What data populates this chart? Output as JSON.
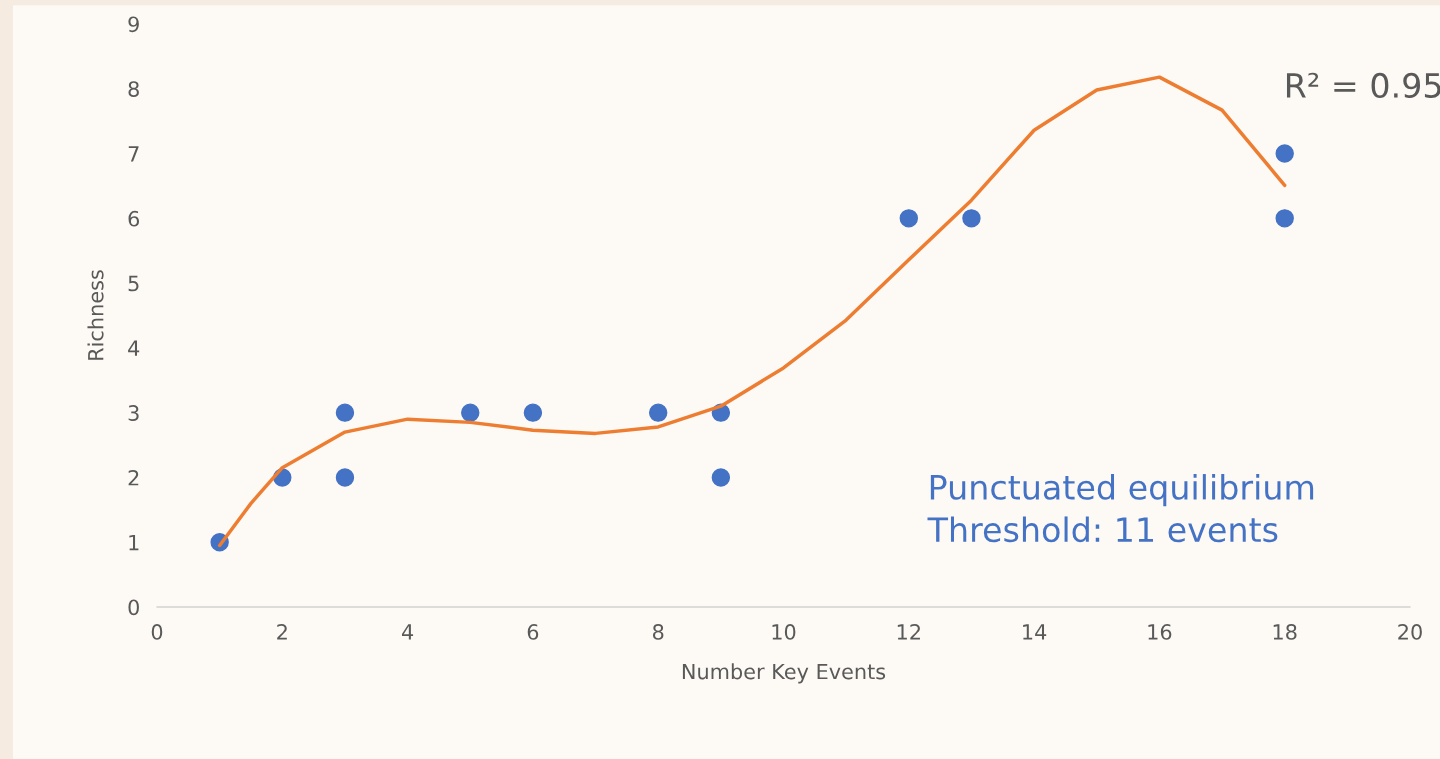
{
  "chart_data": {
    "type": "scatter",
    "xlabel": "Number Key Events",
    "ylabel": "Richness",
    "xlim": [
      0,
      20
    ],
    "xticks": [
      0,
      2,
      4,
      6,
      8,
      10,
      12,
      14,
      16,
      18,
      20
    ],
    "ylim": [
      0,
      9
    ],
    "yticks": [
      0,
      1,
      2,
      3,
      4,
      5,
      6,
      7,
      8,
      9
    ],
    "grid": false,
    "legend": false,
    "marker": "circle",
    "series": [
      {
        "color": "#4472c4",
        "x": [
          1,
          2,
          3,
          3,
          5,
          6,
          8,
          9,
          9,
          12,
          13,
          18,
          18
        ],
        "values": [
          1,
          2,
          3,
          2,
          3,
          3,
          3,
          3,
          2,
          6,
          6,
          7,
          6
        ]
      },
      {
        "type": "line",
        "color": "#ed7d31",
        "marker": "none",
        "line_style": "solid",
        "x": [
          1,
          1.5,
          2,
          3,
          4,
          5,
          6,
          7,
          8,
          9,
          10,
          11,
          12,
          13,
          14,
          15,
          16,
          17,
          18
        ],
        "values": [
          0.95,
          1.6,
          2.15,
          2.7,
          2.9,
          2.85,
          2.73,
          2.68,
          2.78,
          3.1,
          3.69,
          4.43,
          5.36,
          6.28,
          7.36,
          7.98,
          8.18,
          7.67,
          6.51
        ]
      }
    ],
    "annotations": [
      "R² = 0.95",
      "Punctuated equilibrium\nThreshold: 11 events"
    ]
  }
}
